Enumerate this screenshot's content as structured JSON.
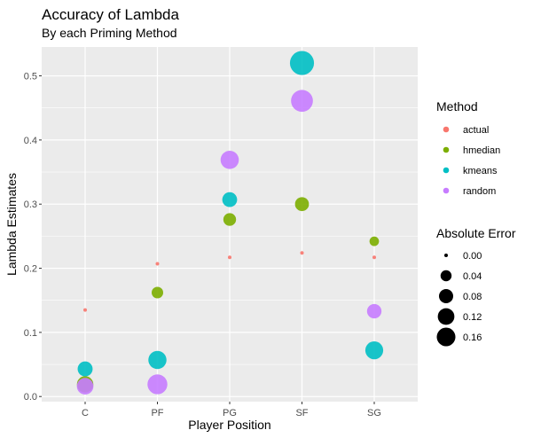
{
  "chart_data": {
    "type": "scatter",
    "title": "Accuracy of Lambda",
    "subtitle": "By each Priming Method",
    "xlabel": "Player Position",
    "ylabel": "Lambda Estimates",
    "categories": [
      "C",
      "PF",
      "PG",
      "SF",
      "SG"
    ],
    "ylim": [
      -0.008,
      0.545
    ],
    "yticks": [
      0.0,
      0.1,
      0.2,
      0.3,
      0.4,
      0.5
    ],
    "ytick_labels": [
      "0.0",
      "0.1",
      "0.2",
      "0.3",
      "0.4",
      "0.5"
    ],
    "grid": true,
    "legend_position": "right",
    "series": [
      {
        "name": "actual",
        "color": "#F8766D",
        "values": [
          0.135,
          0.207,
          0.217,
          0.224,
          0.217
        ],
        "abs_error": [
          0.0,
          0.0,
          0.0,
          0.0,
          0.0
        ]
      },
      {
        "name": "hmedian",
        "color": "#7CAE00",
        "values": [
          0.019,
          0.162,
          0.276,
          0.3,
          0.242
        ],
        "abs_error": [
          0.116,
          0.045,
          0.059,
          0.076,
          0.025
        ]
      },
      {
        "name": "kmeans",
        "color": "#00BFC4",
        "values": [
          0.043,
          0.057,
          0.307,
          0.52,
          0.072
        ],
        "abs_error": [
          0.092,
          0.15,
          0.09,
          0.296,
          0.145
        ]
      },
      {
        "name": "random",
        "color": "#C77CFF",
        "values": [
          0.016,
          0.019,
          0.369,
          0.461,
          0.133
        ],
        "abs_error": [
          0.119,
          0.188,
          0.152,
          0.237,
          0.084
        ]
      }
    ],
    "legend_color": {
      "title": "Method",
      "items": [
        "actual",
        "hmedian",
        "kmeans",
        "random"
      ]
    },
    "legend_size": {
      "title": "Absolute Error",
      "values": [
        0.0,
        0.04,
        0.08,
        0.12,
        0.16
      ],
      "labels": [
        "0.00",
        "0.04",
        "0.08",
        "0.12",
        "0.16"
      ]
    }
  }
}
